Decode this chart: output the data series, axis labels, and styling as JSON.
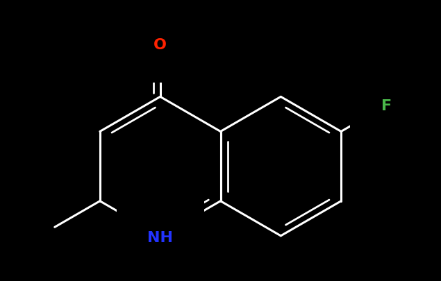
{
  "background_color": "#000000",
  "bond_color": "#ffffff",
  "bond_width": 2.2,
  "atoms": {
    "O": {
      "color": "#ff2200",
      "fontsize": 16,
      "fontweight": "bold"
    },
    "F": {
      "color": "#4ab84a",
      "fontsize": 16,
      "fontweight": "bold"
    },
    "NH": {
      "color": "#2233ff",
      "fontsize": 16,
      "fontweight": "bold"
    }
  },
  "figsize": [
    6.35,
    4.06
  ],
  "dpi": 100
}
